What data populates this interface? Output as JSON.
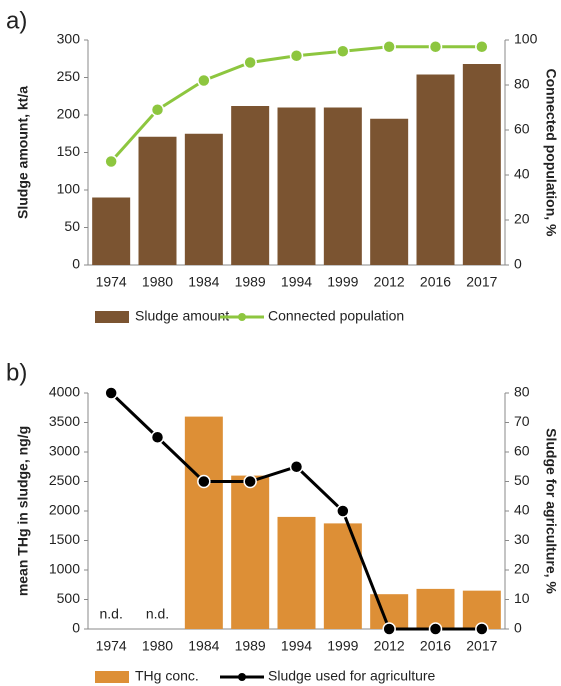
{
  "chart_data": [
    {
      "type": "combo",
      "panel_label": "a)",
      "y_label": "Sludge amount, kt/a",
      "y2_label": "Connected population, %",
      "categories": [
        "1974",
        "1980",
        "1984",
        "1989",
        "1994",
        "1999",
        "2012",
        "2016",
        "2017"
      ],
      "series": [
        {
          "name": "Sludge amount",
          "type": "bar",
          "color": "#7b5431",
          "values": [
            90,
            171,
            175,
            212,
            210,
            210,
            195,
            254,
            268
          ]
        },
        {
          "name": "Connected population",
          "type": "line",
          "axis": "y2",
          "color": "#8dc63f",
          "marker_fill": "#8dc63f",
          "values": [
            46,
            69,
            82,
            90,
            93,
            95,
            97,
            97,
            97
          ]
        }
      ],
      "ylim": [
        0,
        300
      ],
      "yticks": [
        0,
        50,
        100,
        150,
        200,
        250,
        300
      ],
      "y2lim": [
        0,
        100
      ],
      "y2ticks": [
        0,
        20,
        40,
        60,
        80,
        100
      ]
    },
    {
      "type": "combo",
      "panel_label": "b)",
      "y_label": "mean THg in sludge, ng/g",
      "y2_label": "Sludge for agriculture, %",
      "categories": [
        "1974",
        "1980",
        "1984",
        "1989",
        "1994",
        "1999",
        "2012",
        "2016",
        "2017"
      ],
      "series": [
        {
          "name": "THg conc.",
          "type": "bar",
          "color": "#dd8f36",
          "values": [
            null,
            null,
            3600,
            2600,
            1900,
            1790,
            590,
            680,
            650
          ],
          "value_labels": [
            "n.d.",
            "n.d.",
            null,
            null,
            null,
            null,
            null,
            null,
            null
          ]
        },
        {
          "name": "Sludge used for agriculture",
          "type": "line",
          "axis": "y2",
          "color": "#000000",
          "marker_fill": "#000000",
          "values": [
            80,
            65,
            50,
            50,
            55,
            40,
            0,
            0,
            0
          ]
        }
      ],
      "ylim": [
        0,
        4000
      ],
      "yticks": [
        0,
        500,
        1000,
        1500,
        2000,
        2500,
        3000,
        3500,
        4000
      ],
      "y2lim": [
        0,
        80
      ],
      "y2ticks": [
        0,
        10,
        20,
        30,
        40,
        50,
        60,
        70,
        80
      ]
    }
  ]
}
